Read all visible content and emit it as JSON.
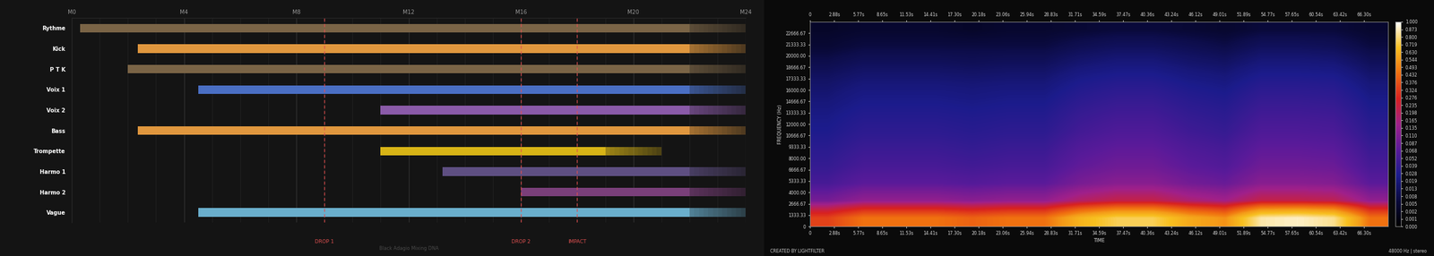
{
  "chart_data": [
    {
      "type": "timeline",
      "xlim": [
        0,
        24
      ],
      "xticks": [
        {
          "value": 0,
          "label": "M0"
        },
        {
          "value": 4,
          "label": "M4"
        },
        {
          "value": 8,
          "label": "M8"
        },
        {
          "value": 12,
          "label": "M12"
        },
        {
          "value": 16,
          "label": "M16"
        },
        {
          "value": 20,
          "label": "M20"
        },
        {
          "value": 24,
          "label": "M24"
        }
      ],
      "grid": true,
      "series": [
        {
          "name": "Rythme",
          "color": "#7a6446",
          "start": 0.3,
          "end": 22,
          "fade_end": 24
        },
        {
          "name": "Kick",
          "color": "#e0973e",
          "start": 2.35,
          "end": 22,
          "fade_end": 24
        },
        {
          "name": "P T K",
          "color": "#7a6446",
          "start": 2.0,
          "end": 22,
          "fade_end": 24
        },
        {
          "name": "Voix 1",
          "color": "#4a6fc4",
          "start": 4.5,
          "end": 22,
          "fade_end": 24
        },
        {
          "name": "Voix 2",
          "color": "#8a5aa8",
          "start": 11.0,
          "end": 22,
          "fade_end": 24
        },
        {
          "name": "Bass",
          "color": "#e0973e",
          "start": 2.35,
          "end": 22,
          "fade_end": 24
        },
        {
          "name": "Trompette",
          "color": "#d8b416",
          "start": 11.0,
          "end": 19,
          "fade_end": 21
        },
        {
          "name": "Harmo 1",
          "color": "#5e4f82",
          "start": 13.2,
          "end": 22,
          "fade_end": 24
        },
        {
          "name": "Harmo 2",
          "color": "#7a3f7a",
          "start": 16.0,
          "end": 22,
          "fade_end": 24
        },
        {
          "name": "Vague",
          "color": "#6aaecc",
          "start": 4.5,
          "end": 22,
          "fade_end": 24
        }
      ],
      "markers": [
        {
          "label": "DROP 1",
          "x": 9
        },
        {
          "label": "DROP 2",
          "x": 16
        },
        {
          "label": "IMPACT",
          "x": 18
        }
      ],
      "footer": "Black Adagio Mixing DNA"
    },
    {
      "type": "heatmap",
      "xlabel": "TIME",
      "ylabel": "FREQUENCY (Hz)",
      "xlim": [
        0,
        69.18
      ],
      "ylim": [
        0,
        24000
      ],
      "xticks": [
        0,
        {
          "value": 2.88,
          "label": "2.88s"
        },
        {
          "value": 5.77,
          "label": "5.77s"
        },
        {
          "value": 8.65,
          "label": "8.65s"
        },
        {
          "value": 11.53,
          "label": "11.53s"
        },
        {
          "value": 14.41,
          "label": "14.41s"
        },
        {
          "value": 17.3,
          "label": "17.30s"
        },
        {
          "value": 20.18,
          "label": "20.18s"
        },
        {
          "value": 23.06,
          "label": "23.06s"
        },
        {
          "value": 25.94,
          "label": "25.94s"
        },
        {
          "value": 28.83,
          "label": "28.83s"
        },
        {
          "value": 31.71,
          "label": "31.71s"
        },
        {
          "value": 34.59,
          "label": "34.59s"
        },
        {
          "value": 37.47,
          "label": "37.47s"
        },
        {
          "value": 40.36,
          "label": "40.36s"
        },
        {
          "value": 43.24,
          "label": "43.24s"
        },
        {
          "value": 46.12,
          "label": "46.12s"
        },
        {
          "value": 49.01,
          "label": "49.01s"
        },
        {
          "value": 51.89,
          "label": "51.89s"
        },
        {
          "value": 54.77,
          "label": "54.77s"
        },
        {
          "value": 57.65,
          "label": "57.65s"
        },
        {
          "value": 60.54,
          "label": "60.54s"
        },
        {
          "value": 63.42,
          "label": "63.42s"
        },
        {
          "value": 66.3,
          "label": "66.30s"
        }
      ],
      "yticks": [
        0,
        1333.33,
        2666.67,
        {
          "value": 4000,
          "label": "4000.00"
        },
        5333.33,
        6666.67,
        {
          "value": 8000,
          "label": "8000.00"
        },
        9333.33,
        10666.67,
        {
          "value": 12000,
          "label": "12000.00"
        },
        13333.33,
        14666.67,
        {
          "value": 16000,
          "label": "16000.00"
        },
        17333.33,
        18666.67,
        {
          "value": 20000,
          "label": "20000.00"
        },
        21333.33,
        22666.67
      ],
      "cells": [
        [
          0.338,
          0.45,
          0.45,
          0.45,
          0.413,
          0.45,
          0.45,
          0.638,
          0.75,
          0.75,
          0.6,
          0.525,
          0.85,
          0.88,
          0.82,
          0.45
        ],
        [
          0.099,
          0.132,
          0.132,
          0.132,
          0.121,
          0.132,
          0.132,
          0.187,
          0.22,
          0.22,
          0.176,
          0.154,
          0.22,
          0.22,
          0.209,
          0.132
        ],
        [
          0.054,
          0.072,
          0.072,
          0.072,
          0.066,
          0.072,
          0.072,
          0.102,
          0.12,
          0.12,
          0.096,
          0.084,
          0.12,
          0.12,
          0.114,
          0.072
        ],
        [
          0.041,
          0.054,
          0.054,
          0.054,
          0.05,
          0.054,
          0.054,
          0.077,
          0.09,
          0.09,
          0.072,
          0.063,
          0.09,
          0.09,
          0.086,
          0.054
        ],
        [
          0.034,
          0.045,
          0.045,
          0.045,
          0.041,
          0.045,
          0.045,
          0.064,
          0.075,
          0.075,
          0.06,
          0.053,
          0.075,
          0.075,
          0.071,
          0.045
        ],
        [
          0.027,
          0.036,
          0.036,
          0.036,
          0.033,
          0.036,
          0.036,
          0.051,
          0.06,
          0.06,
          0.048,
          0.042,
          0.06,
          0.06,
          0.057,
          0.036
        ],
        [
          0.023,
          0.03,
          0.03,
          0.03,
          0.028,
          0.03,
          0.03,
          0.043,
          0.05,
          0.05,
          0.04,
          0.035,
          0.05,
          0.05,
          0.048,
          0.03
        ],
        [
          0.018,
          0.024,
          0.024,
          0.024,
          0.022,
          0.024,
          0.024,
          0.034,
          0.04,
          0.04,
          0.032,
          0.028,
          0.04,
          0.04,
          0.038,
          0.024
        ],
        [
          0.014,
          0.018,
          0.018,
          0.018,
          0.017,
          0.018,
          0.018,
          0.026,
          0.03,
          0.03,
          0.024,
          0.021,
          0.03,
          0.03,
          0.029,
          0.018
        ],
        [
          0.009,
          0.012,
          0.012,
          0.012,
          0.011,
          0.012,
          0.012,
          0.017,
          0.02,
          0.02,
          0.016,
          0.014,
          0.02,
          0.02,
          0.019,
          0.012
        ],
        [
          0.005,
          0.007,
          0.007,
          0.007,
          0.007,
          0.007,
          0.007,
          0.01,
          0.012,
          0.012,
          0.01,
          0.008,
          0.012,
          0.012,
          0.011,
          0.007
        ],
        [
          0.003,
          0.004,
          0.004,
          0.004,
          0.003,
          0.004,
          0.004,
          0.005,
          0.006,
          0.006,
          0.005,
          0.004,
          0.006,
          0.006,
          0.006,
          0.004
        ]
      ],
      "colorbar_range": [
        0,
        1
      ],
      "colorbar_ticks": [
        {
          "value": 0,
          "label": "0.000"
        },
        0.001,
        0.002,
        0.005,
        0.008,
        0.013,
        0.019,
        0.028,
        0.039,
        0.052,
        0.068,
        0.087,
        {
          "value": 0.11,
          "label": "0.110"
        },
        0.135,
        0.165,
        0.198,
        0.235,
        0.276,
        0.324,
        0.376,
        0.432,
        0.493,
        0.544,
        {
          "value": 0.63,
          "label": "0.630"
        },
        0.719,
        {
          "value": 0.8,
          "label": "0.800"
        },
        0.873,
        {
          "value": 1,
          "label": "1.000"
        }
      ],
      "credit": "CREATED BY LIGHTFILTER",
      "info": "48000 Hz | stereo"
    }
  ]
}
